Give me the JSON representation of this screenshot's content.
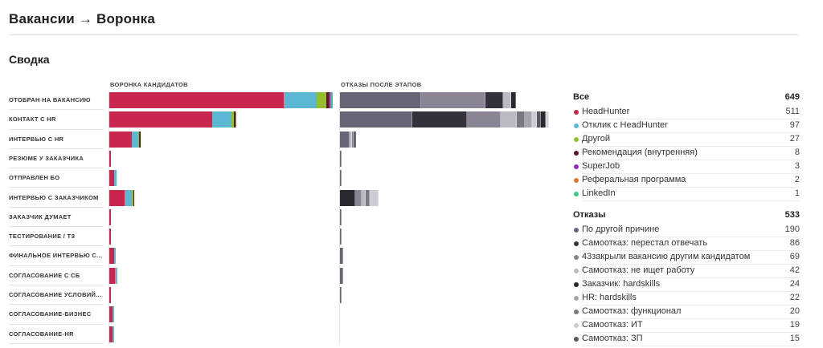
{
  "header": {
    "title": "Вакансии → Воронка"
  },
  "summary": {
    "title": "Сводка",
    "funnel_label": "ВОРОНКА КАНДИДАТОВ",
    "rejections_label": "ОТКАЗЫ ПОСЛЕ ЭТАПОВ"
  },
  "colors": {
    "headhunter": "#c8264f",
    "otklik": "#5bb7d4",
    "drugoy": "#93bf2e",
    "recommend": "#5c1622",
    "superjob": "#8b2fb8",
    "referral": "#e0782a",
    "linkedin": "#3ec98a",
    "rej_other": "#6a6576",
    "rej_stopped": "#33313a",
    "rej_closed": "#8a8494",
    "rej_notlooking": "#bdb9c2",
    "rej_client_hard": "#2b2930",
    "rej_hr_hard": "#a8a4ad",
    "rej_func": "#7b7681",
    "rej_it": "#cfcbd3",
    "rej_zp": "#5a5563"
  },
  "stages": [
    "ОТОБРАН НА ВАКАНСИЮ",
    "КОНТАКТ С HR",
    "ИНТЕРВЬЮ С HR",
    "РЕЗЮМЕ У ЗАКАЗЧИКА",
    "ОТПРАВЛЕН БО",
    "ИНТЕРВЬЮ С ЗАКАЗЧИКОМ",
    "ЗАКАЗЧИК ДУМАЕТ",
    "ТЕСТИРОВАНИЕ / ТЗ",
    "ФИНАЛЬНОЕ ИНТЕРВЬЮ С...",
    "СОГЛАСОВАНИЕ С СБ",
    "СОГЛАСОВАНИЕ УСЛОВИЙ...",
    "СОГЛАСОВАНИЕ-БИЗНЕС",
    "СОГЛАСОВАНИЕ-HR"
  ],
  "funnel_rows": [
    [
      [
        "headhunter",
        511
      ],
      [
        "otklik",
        97
      ],
      [
        "drugoy",
        27
      ],
      [
        "recommend",
        8
      ],
      [
        "superjob",
        3
      ],
      [
        "referral",
        2
      ],
      [
        "linkedin",
        1
      ]
    ],
    [
      [
        "headhunter",
        300
      ],
      [
        "otklik",
        55
      ],
      [
        "drugoy",
        10
      ],
      [
        "recommend",
        4
      ],
      [
        "referral",
        1
      ]
    ],
    [
      [
        "headhunter",
        66
      ],
      [
        "otklik",
        18
      ],
      [
        "drugoy",
        4
      ],
      [
        "recommend",
        2
      ]
    ],
    [
      [
        "headhunter",
        4
      ]
    ],
    [
      [
        "headhunter",
        15
      ],
      [
        "otklik",
        5
      ]
    ],
    [
      [
        "headhunter",
        45
      ],
      [
        "otklik",
        20
      ],
      [
        "drugoy",
        5
      ],
      [
        "recommend",
        3
      ]
    ],
    [
      [
        "headhunter",
        3
      ]
    ],
    [
      [
        "headhunter",
        4
      ]
    ],
    [
      [
        "headhunter",
        14
      ],
      [
        "otklik",
        5
      ]
    ],
    [
      [
        "headhunter",
        17
      ],
      [
        "otklik",
        3
      ],
      [
        "drugoy",
        3
      ]
    ],
    [
      [
        "headhunter",
        3
      ]
    ],
    [
      [
        "headhunter",
        10
      ],
      [
        "otklik",
        2
      ]
    ],
    [
      [
        "headhunter",
        10
      ],
      [
        "otklik",
        3
      ]
    ]
  ],
  "rejection_rows": [
    [
      [
        "rej_other",
        190
      ],
      [
        "rej_closed",
        150
      ],
      [
        "rej_stopped",
        40
      ],
      [
        "rej_notlooking",
        20
      ],
      [
        "rej_client_hard",
        10
      ]
    ],
    [
      [
        "rej_other",
        168
      ],
      [
        "rej_stopped",
        128
      ],
      [
        "rej_closed",
        80
      ],
      [
        "rej_notlooking",
        36
      ],
      [
        "rej_func",
        20
      ],
      [
        "rej_hr_hard",
        16
      ],
      [
        "rej_it",
        12
      ],
      [
        "rej_zp",
        10
      ],
      [
        "rej_client_hard",
        10
      ],
      [
        "rej_rest",
        8
      ]
    ],
    [
      [
        "rej_other",
        22
      ],
      [
        "rej_notlooking",
        6
      ],
      [
        "rej_closed",
        6
      ],
      [
        "rej_client_hard",
        4
      ]
    ],
    [
      [
        "rej_other",
        2
      ]
    ],
    [
      [
        "rej_other",
        2
      ]
    ],
    [
      [
        "rej_client_hard",
        36
      ],
      [
        "rej_closed",
        14
      ],
      [
        "rej_notlooking",
        10
      ],
      [
        "rej_func",
        10
      ],
      [
        "rej_it",
        20
      ]
    ],
    [
      [
        "rej_other",
        2
      ]
    ],
    [
      [
        "rej_other",
        2
      ]
    ],
    [
      [
        "rej_other",
        8
      ]
    ],
    [
      [
        "rej_other",
        8
      ]
    ],
    [
      [
        "rej_other",
        2
      ]
    ],
    [
      [
        "rej_other",
        0
      ]
    ],
    [
      [
        "rej_other",
        0
      ]
    ]
  ],
  "legend_all": {
    "title": "Все",
    "count": "649",
    "items": [
      {
        "label": "HeadHunter",
        "count": "511",
        "color": "headhunter"
      },
      {
        "label": "Отклик с HeadHunter",
        "count": "97",
        "color": "otklik"
      },
      {
        "label": "Другой",
        "count": "27",
        "color": "drugoy"
      },
      {
        "label": "Рекомендация (внутренняя)",
        "count": "8",
        "color": "recommend"
      },
      {
        "label": "SuperJob",
        "count": "3",
        "color": "superjob"
      },
      {
        "label": "Реферальная программа",
        "count": "2",
        "color": "referral"
      },
      {
        "label": "LinkedIn",
        "count": "1",
        "color": "linkedin"
      }
    ]
  },
  "legend_rejections": {
    "title": "Отказы",
    "count": "533",
    "items": [
      {
        "label": "По другой причине",
        "count": "190",
        "color": "rej_other"
      },
      {
        "label": "Самоотказ: перестал отвечать",
        "count": "86",
        "color": "rej_stopped"
      },
      {
        "label": "43закрыли вакансию другим кандидатом",
        "count": "69",
        "color": "rej_closed"
      },
      {
        "label": "Самоотказ: не ищет работу",
        "count": "42",
        "color": "rej_notlooking"
      },
      {
        "label": "Заказчик: hardskills",
        "count": "24",
        "color": "rej_client_hard"
      },
      {
        "label": "HR: hardskills",
        "count": "22",
        "color": "rej_hr_hard"
      },
      {
        "label": "Самоотказ: функционал",
        "count": "20",
        "color": "rej_func"
      },
      {
        "label": "Самоотказ: ИТ",
        "count": "19",
        "color": "rej_it"
      },
      {
        "label": "Самоотказ: ЗП",
        "count": "15",
        "color": "rej_zp"
      }
    ]
  }
}
